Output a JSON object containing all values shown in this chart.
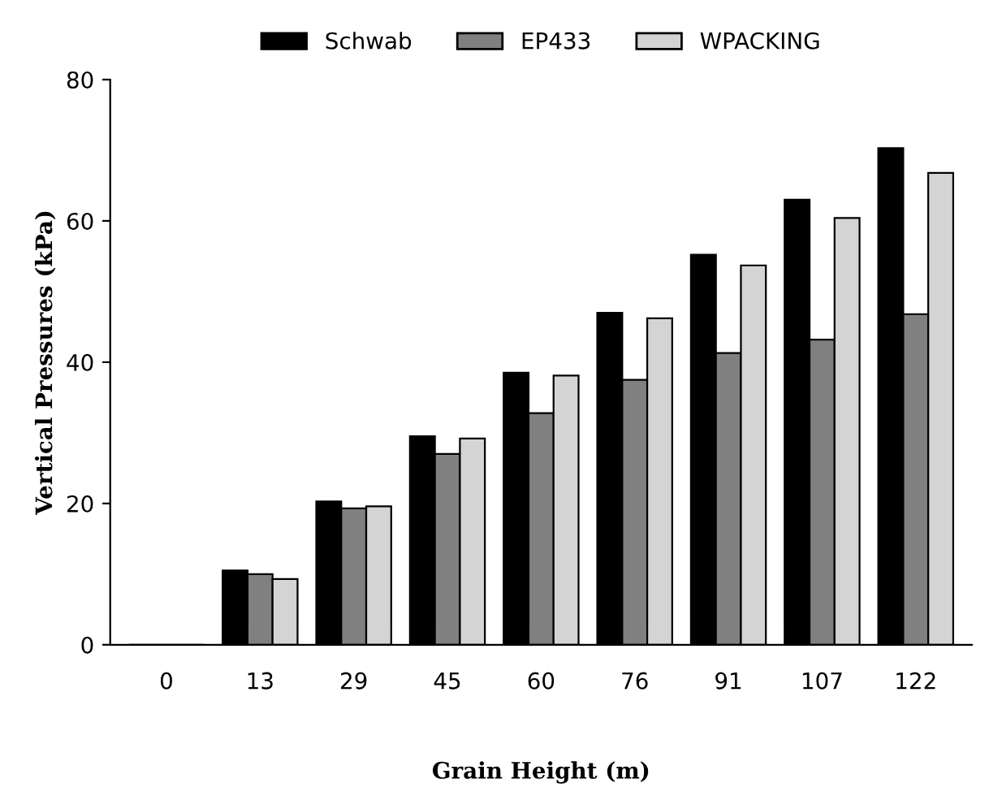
{
  "chart_data": {
    "type": "bar",
    "xlabel": "Grain Height (m)",
    "ylabel": "Vertical Pressures (kPa)",
    "categories": [
      "0",
      "13",
      "29",
      "45",
      "60",
      "76",
      "91",
      "107",
      "122"
    ],
    "series": [
      {
        "name": "Schwab",
        "color": "#000000",
        "values": [
          0,
          10.5,
          20.3,
          29.5,
          38.5,
          47,
          55.2,
          63,
          70.3
        ]
      },
      {
        "name": "EP433",
        "color": "#808080",
        "values": [
          0,
          10,
          19.3,
          27,
          32.8,
          37.5,
          41.3,
          43.2,
          46.8
        ]
      },
      {
        "name": "WPACKING",
        "color": "#d4d4d4",
        "values": [
          0,
          9.3,
          19.6,
          29.2,
          38.1,
          46.2,
          53.7,
          60.4,
          66.8
        ]
      }
    ],
    "ylim": [
      0,
      80
    ],
    "yticks": [
      0,
      20,
      40,
      60,
      80
    ],
    "grid": false,
    "legend": "top"
  }
}
